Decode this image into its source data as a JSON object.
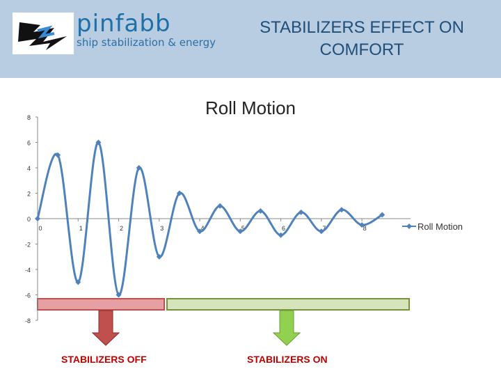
{
  "header": {
    "logo_name": "pinfabb",
    "logo_tagline": "ship stabilization & energy",
    "title": "STABILIZERS EFFECT ON COMFORT"
  },
  "colors": {
    "header_bg": "#b9cde2",
    "series": "#4f81bd",
    "off_bar_fill": "#e6a0a3",
    "off_bar_stroke": "#c0504d",
    "on_bar_fill": "#d6e4bc",
    "on_bar_stroke": "#76923c",
    "off_arrow": "#c0504d",
    "on_arrow": "#92d050",
    "annotation_text": "#c00000"
  },
  "chart_data": {
    "type": "line",
    "title": "Roll Motion",
    "xlabel": "",
    "ylabel": "",
    "xlim": [
      0,
      9.2
    ],
    "ylim": [
      -8,
      8
    ],
    "x_ticks": [
      "0",
      "1",
      "2",
      "3",
      "4",
      "5",
      "6",
      "7",
      "8"
    ],
    "y_ticks": [
      "8",
      "6",
      "4",
      "2",
      "0",
      "-2",
      "-4",
      "-6",
      "-8"
    ],
    "series": [
      {
        "name": "Roll Motion",
        "x": [
          0,
          0.5,
          1.0,
          1.5,
          2.0,
          2.5,
          3.0,
          3.5,
          4.0,
          4.5,
          5.0,
          5.5,
          6.0,
          6.5,
          7.0,
          7.5,
          8.0,
          8.5
        ],
        "y": [
          0,
          5,
          -5,
          6,
          -6,
          4,
          -3,
          2,
          -1,
          1,
          -1,
          0.6,
          -1.3,
          0.5,
          -1,
          0.7,
          -0.5,
          0.3
        ]
      }
    ],
    "legend": "right",
    "grid": false
  },
  "annotations": {
    "off_label": "STABILIZERS OFF",
    "on_label": "STABILIZERS ON"
  }
}
